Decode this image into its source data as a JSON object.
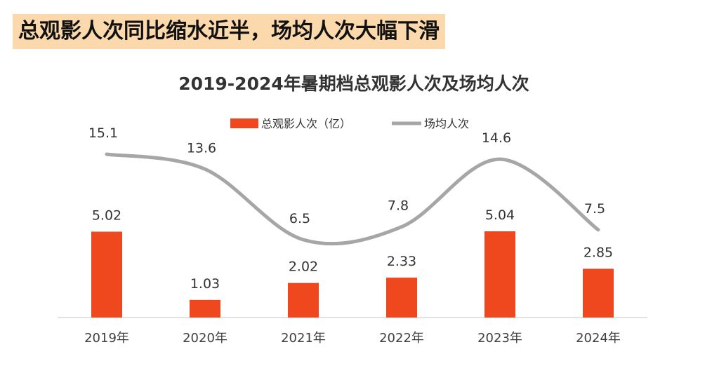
{
  "headline": "总观影人次同比缩水近半，场均人次大幅下滑",
  "colors": {
    "bar": "#f0481e",
    "line": "#a6a6a6",
    "headline_bg": "#fbd9ac"
  },
  "chart_data": {
    "type": "bar+line",
    "title": "2019-2024年暑期档总观影人次及场均人次",
    "categories": [
      "2019年",
      "2020年",
      "2021年",
      "2022年",
      "2023年",
      "2024年"
    ],
    "series": [
      {
        "name": "总观影人次（亿）",
        "type": "bar",
        "values": [
          5.02,
          1.03,
          2.02,
          2.33,
          5.04,
          2.85
        ],
        "labels": [
          "5.02",
          "1.03",
          "2.02",
          "2.33",
          "5.04",
          "2.85"
        ]
      },
      {
        "name": "场均人次",
        "type": "line",
        "values": [
          15.1,
          13.6,
          6.5,
          7.8,
          14.6,
          7.5
        ],
        "labels": [
          "15.1",
          "13.6",
          "6.5",
          "7.8",
          "14.6",
          "7.5"
        ]
      }
    ],
    "legend_position": "top-center",
    "grid": false
  }
}
